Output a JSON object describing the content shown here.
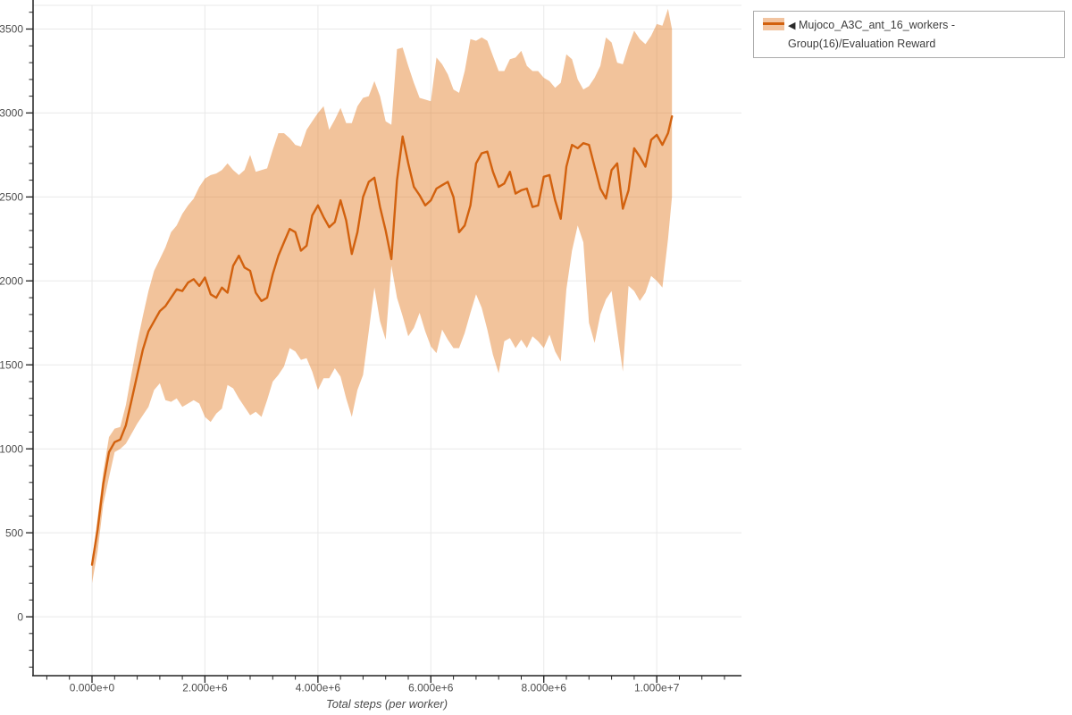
{
  "page": {
    "background": "#ffffff"
  },
  "chart_data": {
    "type": "line",
    "title": "",
    "xlabel": "Total steps (per worker)",
    "ylabel": "",
    "grid": true,
    "legend": {
      "position": "top-right",
      "icon": "◀",
      "entries": [
        {
          "label": "Mujoco_A3C_ant_16_workers - Group(16)/Evaluation Reward"
        }
      ]
    },
    "colors": {
      "line": "#d2610e",
      "band": "rgba(226,121,33,0.45)",
      "band_solid": "#f2c4a0",
      "grid": "#e9e9e9",
      "axis": "#222222",
      "tick_label": "#4d4d4d"
    },
    "x_axis": {
      "range": [
        -1044000,
        11500000
      ],
      "major_ticks": [
        0,
        2000000,
        4000000,
        6000000,
        8000000,
        10000000
      ],
      "major_tick_labels": [
        "0.000e+0",
        "2.000e+6",
        "4.000e+6",
        "6.000e+6",
        "8.000e+6",
        "1.000e+7"
      ],
      "minor_tick_start": -800000,
      "minor_tick_step": 400000,
      "minor_tick_end": 11200000
    },
    "y_axis": {
      "range": [
        -351,
        3641
      ],
      "major_ticks": [
        0,
        500,
        1000,
        1500,
        2000,
        2500,
        3000,
        3500
      ],
      "major_tick_labels": [
        "0",
        "500",
        "1000",
        "1500",
        "2000",
        "2500",
        "3000",
        "3500"
      ],
      "minor_tick_start": -300,
      "minor_tick_step": 100,
      "minor_tick_end": 3600
    },
    "series": [
      {
        "name": "Mujoco_A3C_ant_16_workers - Group(16)/Evaluation Reward",
        "x": [
          0,
          100000,
          200000,
          300000,
          400000,
          500000,
          600000,
          700000,
          800000,
          900000,
          1000000,
          1100000,
          1200000,
          1300000,
          1400000,
          1500000,
          1600000,
          1700000,
          1800000,
          1900000,
          2000000,
          2100000,
          2200000,
          2300000,
          2400000,
          2500000,
          2600000,
          2700000,
          2800000,
          2900000,
          3000000,
          3100000,
          3200000,
          3300000,
          3400000,
          3500000,
          3600000,
          3700000,
          3800000,
          3900000,
          4000000,
          4100000,
          4200000,
          4300000,
          4400000,
          4500000,
          4600000,
          4700000,
          4800000,
          4900000,
          5000000,
          5100000,
          5200000,
          5300000,
          5400000,
          5500000,
          5600000,
          5700000,
          5800000,
          5900000,
          6000000,
          6100000,
          6200000,
          6300000,
          6400000,
          6500000,
          6600000,
          6700000,
          6800000,
          6900000,
          7000000,
          7100000,
          7200000,
          7300000,
          7400000,
          7500000,
          7600000,
          7700000,
          7800000,
          7900000,
          8000000,
          8100000,
          8200000,
          8300000,
          8400000,
          8500000,
          8600000,
          8700000,
          8800000,
          8900000,
          9000000,
          9100000,
          9200000,
          9300000,
          9400000,
          9500000,
          9600000,
          9700000,
          9800000,
          9900000,
          10000000,
          10100000,
          10200000,
          10270000
        ],
        "mean": [
          310,
          520,
          790,
          980,
          1040,
          1055,
          1140,
          1290,
          1440,
          1590,
          1700,
          1760,
          1820,
          1850,
          1900,
          1950,
          1940,
          1990,
          2010,
          1970,
          2020,
          1920,
          1900,
          1960,
          1930,
          2090,
          2150,
          2080,
          2060,
          1930,
          1880,
          1900,
          2040,
          2150,
          2230,
          2310,
          2290,
          2180,
          2210,
          2390,
          2450,
          2380,
          2320,
          2350,
          2480,
          2360,
          2160,
          2290,
          2500,
          2590,
          2615,
          2440,
          2300,
          2130,
          2600,
          2860,
          2700,
          2560,
          2510,
          2450,
          2480,
          2550,
          2570,
          2590,
          2500,
          2290,
          2330,
          2450,
          2700,
          2760,
          2770,
          2650,
          2560,
          2580,
          2650,
          2520,
          2540,
          2550,
          2440,
          2450,
          2620,
          2630,
          2480,
          2370,
          2680,
          2810,
          2790,
          2820,
          2810,
          2680,
          2550,
          2490,
          2660,
          2700,
          2430,
          2540,
          2790,
          2740,
          2680,
          2840,
          2870,
          2810,
          2880,
          2980
        ],
        "lower": [
          200,
          390,
          670,
          830,
          980,
          1000,
          1030,
          1090,
          1150,
          1200,
          1250,
          1350,
          1390,
          1290,
          1280,
          1300,
          1250,
          1270,
          1290,
          1270,
          1190,
          1160,
          1210,
          1240,
          1380,
          1360,
          1300,
          1250,
          1200,
          1220,
          1190,
          1290,
          1400,
          1440,
          1490,
          1600,
          1580,
          1530,
          1540,
          1460,
          1350,
          1420,
          1420,
          1480,
          1430,
          1300,
          1190,
          1350,
          1440,
          1700,
          1960,
          1760,
          1650,
          2090,
          1900,
          1790,
          1670,
          1720,
          1810,
          1700,
          1610,
          1570,
          1710,
          1650,
          1600,
          1600,
          1690,
          1810,
          1920,
          1840,
          1710,
          1560,
          1450,
          1640,
          1660,
          1600,
          1650,
          1600,
          1670,
          1640,
          1600,
          1680,
          1580,
          1520,
          1950,
          2180,
          2330,
          2230,
          1750,
          1630,
          1800,
          1890,
          1940,
          1700,
          1460,
          1970,
          1940,
          1880,
          1930,
          2030,
          2000,
          1960,
          2250,
          2500
        ],
        "upper": [
          330,
          590,
          860,
          1070,
          1120,
          1130,
          1260,
          1450,
          1630,
          1790,
          1940,
          2060,
          2130,
          2200,
          2290,
          2330,
          2400,
          2450,
          2490,
          2560,
          2610,
          2630,
          2640,
          2660,
          2700,
          2660,
          2630,
          2660,
          2750,
          2650,
          2660,
          2670,
          2780,
          2880,
          2880,
          2850,
          2810,
          2800,
          2900,
          2950,
          3000,
          3040,
          2900,
          2960,
          3030,
          2940,
          2940,
          3040,
          3090,
          3100,
          3190,
          3100,
          2950,
          2930,
          3380,
          3390,
          3280,
          3180,
          3090,
          3080,
          3070,
          3330,
          3290,
          3230,
          3140,
          3120,
          3250,
          3440,
          3430,
          3450,
          3430,
          3340,
          3250,
          3250,
          3320,
          3330,
          3370,
          3280,
          3250,
          3250,
          3210,
          3190,
          3150,
          3180,
          3350,
          3320,
          3200,
          3140,
          3160,
          3210,
          3280,
          3450,
          3420,
          3300,
          3290,
          3400,
          3490,
          3440,
          3410,
          3460,
          3530,
          3520,
          3620,
          3500
        ]
      }
    ]
  }
}
